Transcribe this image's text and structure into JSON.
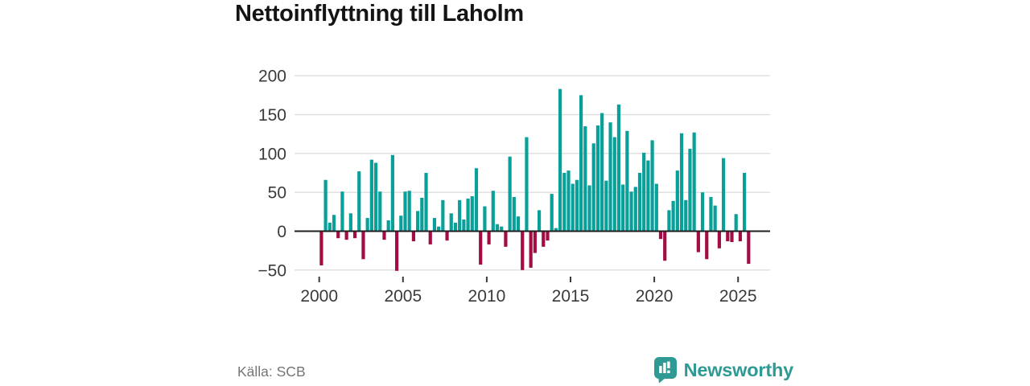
{
  "title": "Nettoinflyttning till Laholm",
  "source": {
    "label": "Källa: SCB"
  },
  "brand": {
    "name": "Newsworthy",
    "color": "#2F9A94"
  },
  "axis": {
    "y_labels": [
      "200",
      "150",
      "100",
      "50",
      "0",
      "−50"
    ],
    "x_labels": [
      "2000",
      "2005",
      "2010",
      "2015",
      "2020",
      "2025"
    ]
  },
  "chart_data": {
    "type": "bar",
    "title": "Nettoinflyttning till Laholm",
    "source": "Källa: SCB",
    "frequency": "quarterly",
    "x_start_year": 2000,
    "x_start_quarter": 1,
    "x_end_year": 2025,
    "x_end_quarter": 3,
    "x_tick_years": [
      2000,
      2005,
      2010,
      2015,
      2020,
      2025
    ],
    "y_ticks": [
      200,
      150,
      100,
      50,
      0,
      -50
    ],
    "ylim": [
      -62,
      212
    ],
    "grid": true,
    "positive_color": "#0AA09A",
    "negative_color": "#A30D45",
    "grid_color": "#DEDEDE",
    "zero_line_color": "#1F1F1F",
    "tick_label_color": "#3A3A3A",
    "values": [
      -44,
      66,
      11,
      21,
      -9,
      51,
      -11,
      23,
      -9,
      77,
      -36,
      17,
      92,
      88,
      51,
      -11,
      14,
      98,
      -51,
      20,
      51,
      52,
      -13,
      26,
      43,
      75,
      -17,
      17,
      6,
      40,
      -12,
      23,
      11,
      40,
      15,
      42,
      45,
      81,
      -43,
      32,
      -17,
      52,
      9,
      6,
      -20,
      96,
      44,
      19,
      -50,
      121,
      -47,
      -28,
      27,
      -20,
      -12,
      48,
      4,
      183,
      75,
      78,
      61,
      66,
      175,
      135,
      59,
      113,
      136,
      152,
      65,
      140,
      121,
      163,
      60,
      129,
      51,
      57,
      75,
      101,
      91,
      117,
      61,
      -10,
      -38,
      27,
      39,
      78,
      126,
      40,
      106,
      127,
      -27,
      50,
      -36,
      44,
      33,
      -22,
      94,
      -13,
      -14,
      22,
      -13,
      75,
      -42
    ]
  }
}
